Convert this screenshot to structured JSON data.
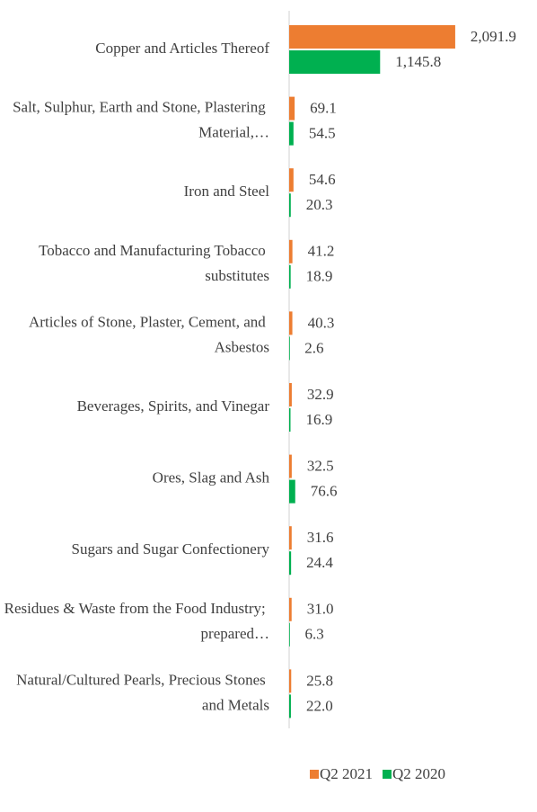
{
  "chart_data": {
    "type": "bar",
    "orientation": "horizontal",
    "categories": [
      "Copper and Articles Thereof",
      "Salt, Sulphur, Earth and Stone, Plastering Material,…",
      "Iron and Steel",
      "Tobacco and Manufacturing Tobacco substitutes",
      "Articles of Stone, Plaster, Cement, and Asbestos",
      "Beverages, Spirits, and Vinegar",
      "Ores, Slag and Ash",
      "Sugars and Sugar Confectionery",
      "Residues & Waste from the Food Industry; prepared…",
      "Natural/Cultured Pearls, Precious Stones and Metals"
    ],
    "series": [
      {
        "name": "Q2 2021",
        "color": "#ed7d31",
        "values": [
          2091.9,
          69.1,
          54.6,
          41.2,
          40.3,
          32.9,
          32.5,
          31.6,
          31.0,
          25.8
        ],
        "value_labels": [
          "2,091.9",
          "69.1",
          "54.6",
          "41.2",
          "40.3",
          "32.9",
          "32.5",
          "31.6",
          "31.0",
          "25.8"
        ]
      },
      {
        "name": "Q2 2020",
        "color": "#00b050",
        "values": [
          1145.8,
          54.5,
          20.3,
          18.9,
          2.6,
          16.9,
          76.6,
          24.4,
          6.3,
          22.0
        ],
        "value_labels": [
          "1,145.8",
          "54.5",
          "20.3",
          "18.9",
          "2.6",
          "16.9",
          "76.6",
          "24.4",
          "6.3",
          "22.0"
        ]
      }
    ],
    "xlim": [
      0,
      2500
    ],
    "legend": "bottom"
  }
}
